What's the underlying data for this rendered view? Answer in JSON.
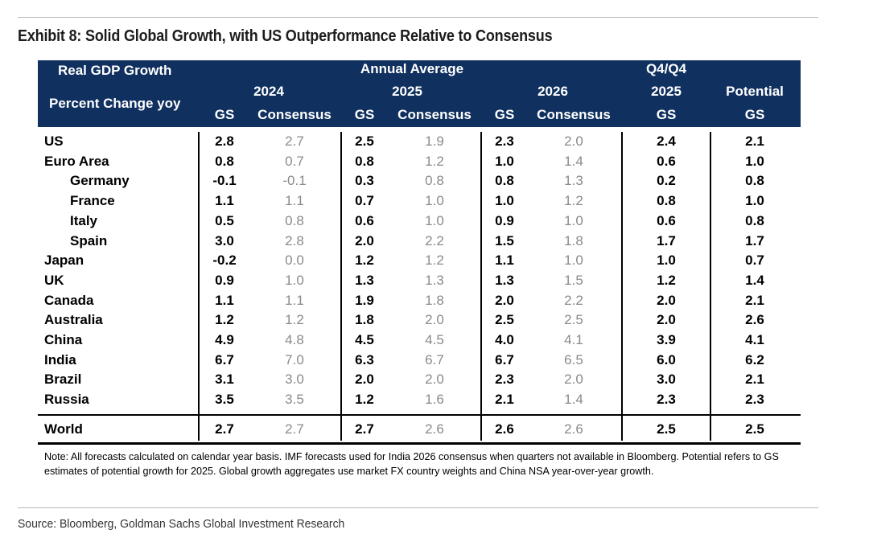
{
  "title": "Exhibit 8: Solid Global Growth, with US Outperformance Relative to Consensus",
  "header": {
    "row_label_1": "Real GDP Growth",
    "row_label_2": "Percent Change yoy",
    "annual_average": "Annual Average",
    "q4q4": "Q4/Q4",
    "potential": "Potential",
    "year_2024": "2024",
    "year_2025": "2025",
    "year_2026": "2026",
    "q4_year_2025": "2025",
    "gs": "GS",
    "consensus": "Consensus"
  },
  "rows": [
    {
      "country": "US",
      "indent": false,
      "v": [
        "2.8",
        "2.7",
        "2.5",
        "1.9",
        "2.3",
        "2.0",
        "2.4",
        "2.1"
      ]
    },
    {
      "country": "Euro Area",
      "indent": false,
      "v": [
        "0.8",
        "0.7",
        "0.8",
        "1.2",
        "1.0",
        "1.4",
        "0.6",
        "1.0"
      ]
    },
    {
      "country": "Germany",
      "indent": true,
      "v": [
        "-0.1",
        "-0.1",
        "0.3",
        "0.8",
        "0.8",
        "1.3",
        "0.2",
        "0.8"
      ]
    },
    {
      "country": "France",
      "indent": true,
      "v": [
        "1.1",
        "1.1",
        "0.7",
        "1.0",
        "1.0",
        "1.2",
        "0.8",
        "1.0"
      ]
    },
    {
      "country": "Italy",
      "indent": true,
      "v": [
        "0.5",
        "0.8",
        "0.6",
        "1.0",
        "0.9",
        "1.0",
        "0.6",
        "0.8"
      ]
    },
    {
      "country": "Spain",
      "indent": true,
      "v": [
        "3.0",
        "2.8",
        "2.0",
        "2.2",
        "1.5",
        "1.8",
        "1.7",
        "1.7"
      ]
    },
    {
      "country": "Japan",
      "indent": false,
      "v": [
        "-0.2",
        "0.0",
        "1.2",
        "1.2",
        "1.1",
        "1.0",
        "1.0",
        "0.7"
      ]
    },
    {
      "country": "UK",
      "indent": false,
      "v": [
        "0.9",
        "1.0",
        "1.3",
        "1.3",
        "1.3",
        "1.5",
        "1.2",
        "1.4"
      ]
    },
    {
      "country": "Canada",
      "indent": false,
      "v": [
        "1.1",
        "1.1",
        "1.9",
        "1.8",
        "2.0",
        "2.2",
        "2.0",
        "2.1"
      ]
    },
    {
      "country": "Australia",
      "indent": false,
      "v": [
        "1.2",
        "1.2",
        "1.8",
        "2.0",
        "2.5",
        "2.5",
        "2.0",
        "2.6"
      ]
    },
    {
      "country": "China",
      "indent": false,
      "v": [
        "4.9",
        "4.8",
        "4.5",
        "4.5",
        "4.0",
        "4.1",
        "3.9",
        "4.1"
      ]
    },
    {
      "country": "India",
      "indent": false,
      "v": [
        "6.7",
        "7.0",
        "6.3",
        "6.7",
        "6.7",
        "6.5",
        "6.0",
        "6.2"
      ]
    },
    {
      "country": "Brazil",
      "indent": false,
      "v": [
        "3.1",
        "3.0",
        "2.0",
        "2.0",
        "2.3",
        "2.0",
        "3.0",
        "2.1"
      ]
    },
    {
      "country": "Russia",
      "indent": false,
      "v": [
        "3.5",
        "3.5",
        "1.2",
        "1.6",
        "2.1",
        "1.4",
        "2.3",
        "2.3"
      ]
    }
  ],
  "world": {
    "country": "World",
    "v": [
      "2.7",
      "2.7",
      "2.7",
      "2.6",
      "2.6",
      "2.6",
      "2.5",
      "2.5"
    ]
  },
  "note": "Note: All forecasts calculated on calendar year basis. IMF forecasts used for India 2026 consensus when quarters not available in Bloomberg. Potential refers to GS estimates of potential growth for 2025. Global growth aggregates use market FX country weights and China NSA year-over-year growth.",
  "source": "Source: Bloomberg, Goldman Sachs Global Investment Research"
}
